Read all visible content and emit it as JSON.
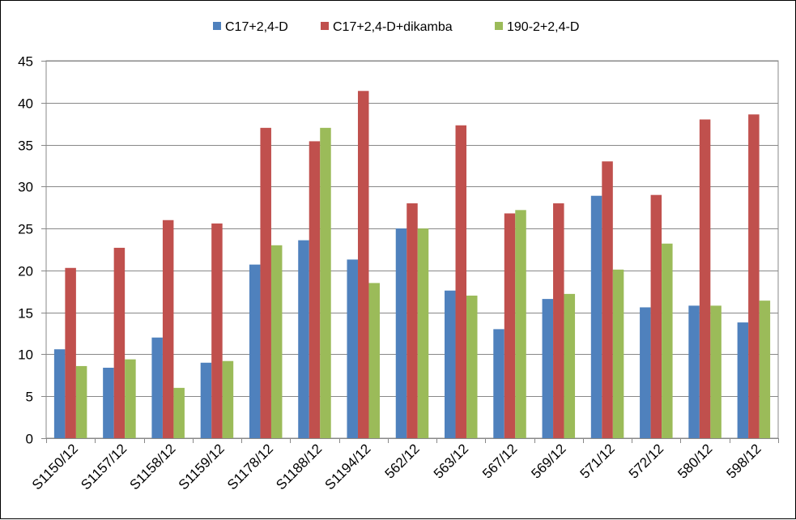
{
  "chart_data": {
    "type": "bar",
    "title": "",
    "xlabel": "",
    "ylabel": "",
    "ylim": [
      0,
      45
    ],
    "y_ticks": [
      0,
      5,
      10,
      15,
      20,
      25,
      30,
      35,
      40,
      45
    ],
    "grid": "horizontal",
    "legend_position": "top-center",
    "categories": [
      "S1150/12",
      "S1157/12",
      "S1158/12",
      "S1159/12",
      "S1178/12",
      "S1188/12",
      "S1194/12",
      "562/12",
      "563/12",
      "567/12",
      "569/12",
      "571/12",
      "572/12",
      "580/12",
      "598/12"
    ],
    "series": [
      {
        "name": "C17+2,4-D",
        "color": "#4f81bd",
        "values": [
          10.6,
          8.4,
          12.0,
          9.0,
          20.7,
          23.6,
          21.3,
          25.0,
          17.6,
          13.0,
          16.6,
          28.9,
          15.6,
          15.8,
          13.8
        ]
      },
      {
        "name": "C17+2,4-D+dikamba",
        "color": "#c0504d",
        "values": [
          20.3,
          22.7,
          26.0,
          25.6,
          37.0,
          35.4,
          41.4,
          28.0,
          37.3,
          26.8,
          28.0,
          33.0,
          29.0,
          38.0,
          38.6
        ]
      },
      {
        "name": "190-2+2,4-D",
        "color": "#9bbb59",
        "values": [
          8.6,
          9.4,
          6.0,
          9.2,
          23.0,
          37.0,
          18.5,
          25.0,
          17.0,
          27.2,
          17.2,
          20.1,
          23.2,
          15.8,
          16.4
        ]
      }
    ]
  }
}
